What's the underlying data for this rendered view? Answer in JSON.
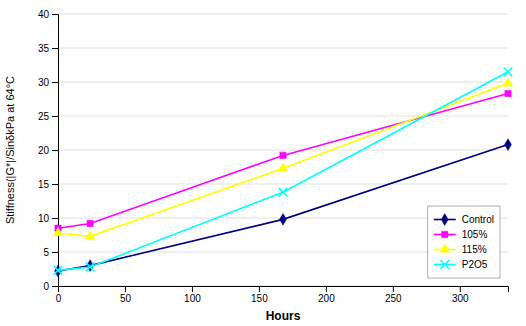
{
  "chart_data": {
    "type": "line",
    "x": [
      0,
      24,
      168,
      336
    ],
    "series": [
      {
        "name": "Control",
        "color": "#000080",
        "marker": "diamond",
        "values": [
          2.2,
          3.0,
          9.8,
          20.8
        ]
      },
      {
        "name": "105%",
        "color": "#FF00FF",
        "marker": "square",
        "values": [
          8.5,
          9.2,
          19.2,
          28.3
        ]
      },
      {
        "name": "115%",
        "color": "#FFFF00",
        "marker": "triangle",
        "values": [
          7.8,
          7.3,
          17.3,
          29.8
        ]
      },
      {
        "name": "P2O5",
        "color": "#00FFFF",
        "marker": "x",
        "values": [
          2.3,
          2.8,
          13.8,
          31.5
        ]
      }
    ],
    "xlabel": "Hours",
    "ylabel": "Stiffness(|G*|/SinδkPa at 64°C",
    "xlim": [
      0,
      336
    ],
    "ylim": [
      0,
      40
    ],
    "xticks": [
      0,
      50,
      100,
      150,
      200,
      250,
      300
    ],
    "yticks": [
      0,
      5,
      10,
      15,
      20,
      25,
      30,
      35,
      40
    ],
    "grid": "y",
    "legend": "lower right"
  }
}
